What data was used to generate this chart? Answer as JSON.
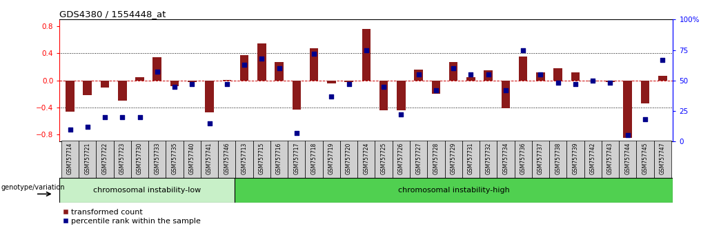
{
  "title": "GDS4380 / 1554448_at",
  "categories": [
    "GSM757714",
    "GSM757721",
    "GSM757722",
    "GSM757723",
    "GSM757730",
    "GSM757733",
    "GSM757735",
    "GSM757740",
    "GSM757741",
    "GSM757746",
    "GSM757713",
    "GSM757715",
    "GSM757716",
    "GSM757717",
    "GSM757718",
    "GSM757719",
    "GSM757720",
    "GSM757724",
    "GSM757725",
    "GSM757726",
    "GSM757727",
    "GSM757728",
    "GSM757729",
    "GSM757731",
    "GSM757732",
    "GSM757734",
    "GSM757736",
    "GSM757737",
    "GSM757738",
    "GSM757739",
    "GSM757742",
    "GSM757743",
    "GSM757744",
    "GSM757745",
    "GSM757747"
  ],
  "bar_values": [
    -0.46,
    -0.22,
    -0.1,
    -0.3,
    0.05,
    0.34,
    -0.08,
    -0.02,
    -0.47,
    0.01,
    0.37,
    0.55,
    0.27,
    -0.43,
    0.48,
    -0.04,
    -0.02,
    0.76,
    -0.44,
    -0.44,
    0.16,
    -0.2,
    0.27,
    0.05,
    0.15,
    -0.41,
    0.35,
    0.12,
    0.18,
    0.12,
    -0.01,
    -0.02,
    -0.85,
    -0.34,
    0.07
  ],
  "dot_values_pct": [
    10,
    12,
    20,
    20,
    20,
    57,
    45,
    47,
    15,
    47,
    63,
    68,
    60,
    7,
    72,
    37,
    47,
    75,
    45,
    22,
    55,
    42,
    60,
    55,
    55,
    42,
    75,
    55,
    48,
    47,
    50,
    48,
    5,
    18,
    67
  ],
  "group1_label": "chromosomal instability-low",
  "group2_label": "chromosomal instability-high",
  "group1_count": 10,
  "group2_count": 25,
  "genotype_label": "genotype/variation",
  "legend_bar": "transformed count",
  "legend_dot": "percentile rank within the sample",
  "bar_color": "#8B1A1A",
  "dot_color": "#00008B",
  "ylim": [
    -0.9,
    0.9
  ],
  "right_ylim": [
    0,
    100
  ],
  "yticks_left": [
    -0.8,
    -0.4,
    0.0,
    0.4,
    0.8
  ],
  "yticks_right": [
    0,
    25,
    50,
    75,
    100
  ],
  "ytick_right_labels": [
    "0",
    "25",
    "50",
    "75",
    "100%"
  ],
  "dotted_lines": [
    0.4,
    -0.4
  ],
  "zero_line_color": "#CC0000",
  "bar_width": 0.5,
  "group1_color": "#C8F0C8",
  "group2_color": "#50D050",
  "xlabel_bg_color": "#D0D0D0"
}
